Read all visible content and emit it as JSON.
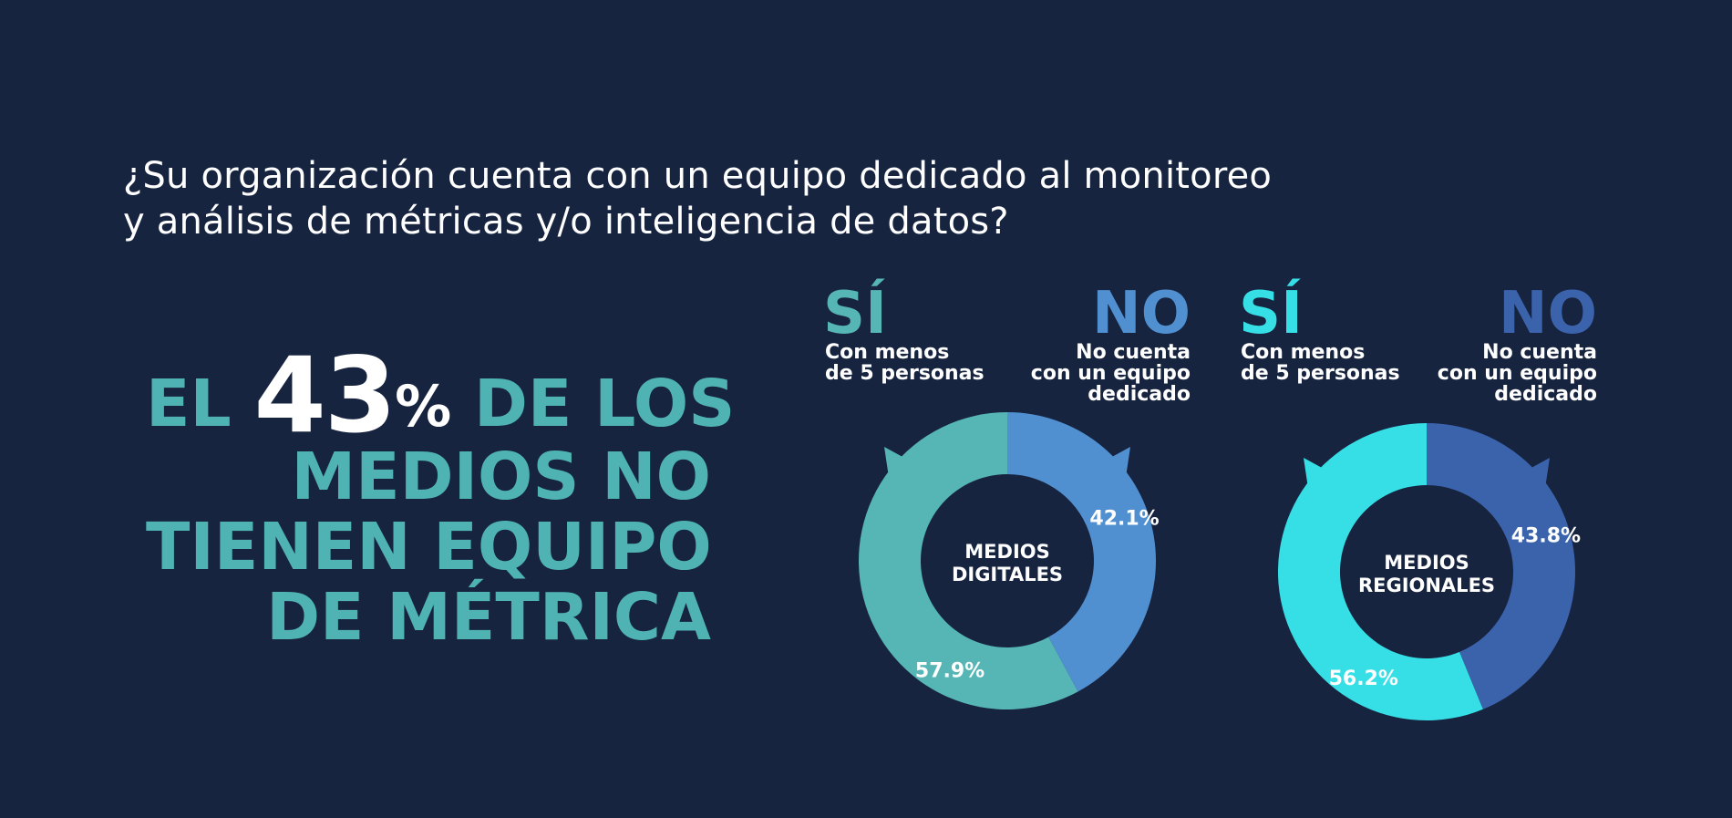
{
  "question": {
    "line1": "¿Su organización cuenta con un equipo dedicado al monitoreo",
    "line2": "y análisis de métricas y/o inteligencia de datos?"
  },
  "headline": {
    "pre": "EL",
    "number": "43",
    "percent": "%",
    "post": "DE LOS",
    "line2": "MEDIOS NO",
    "line3": "TIENEN EQUIPO",
    "line4": "DE MÉTRICA"
  },
  "colors": {
    "background": "#172440",
    "digital_yes": "#56b5b5",
    "digital_no": "#5190d0",
    "regional_yes": "#36dfe6",
    "regional_no": "#3b63ac"
  },
  "charts": {
    "digital": {
      "yes_title": "SÍ",
      "yes_desc": "Con menos\nde 5 personas",
      "no_title": "NO",
      "no_desc": "No cuenta\ncon un equipo\ndedicado",
      "center_line1": "MEDIOS",
      "center_line2": "DIGITALES"
    },
    "regional": {
      "yes_title": "SÍ",
      "yes_desc": "Con menos\nde 5 personas",
      "no_title": "NO",
      "no_desc": "No cuenta\ncon un equipo\ndedicado",
      "center_line1": "MEDIOS",
      "center_line2": "REGIONALES"
    }
  },
  "chart_data": [
    {
      "type": "pie",
      "title": "MEDIOS DIGITALES",
      "categories": [
        "SÍ",
        "NO"
      ],
      "values": [
        57.9,
        42.1
      ],
      "labels": [
        "57.9%",
        "42.1%"
      ],
      "colors": [
        "#56b5b5",
        "#5190d0"
      ]
    },
    {
      "type": "pie",
      "title": "MEDIOS REGIONALES",
      "categories": [
        "SÍ",
        "NO"
      ],
      "values": [
        56.2,
        43.8
      ],
      "labels": [
        "56.2%",
        "43.8%"
      ],
      "colors": [
        "#36dfe6",
        "#3b63ac"
      ]
    }
  ]
}
